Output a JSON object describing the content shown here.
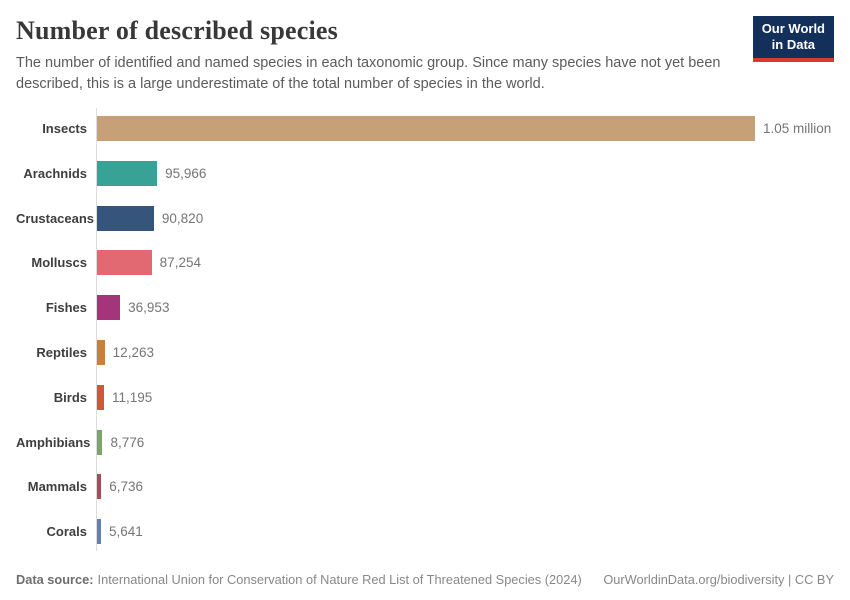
{
  "header": {
    "title": "Number of described species",
    "subtitle": "The number of identified and named species in each taxonomic group. Since many species have not yet been described, this is a large underestimate of the total number of species in the world.",
    "logo": {
      "line1": "Our World",
      "line2": "in Data",
      "bg_color": "#12305a",
      "accent_color": "#d93a2b"
    }
  },
  "chart_data": {
    "type": "bar",
    "orientation": "horizontal",
    "title": "Number of described species",
    "categories": [
      "Insects",
      "Arachnids",
      "Crustaceans",
      "Molluscs",
      "Fishes",
      "Reptiles",
      "Birds",
      "Amphibians",
      "Mammals",
      "Corals"
    ],
    "values": [
      1050000,
      95966,
      90820,
      87254,
      36953,
      12263,
      11195,
      8776,
      6736,
      5641
    ],
    "value_labels": [
      "1.05 million",
      "95,966",
      "90,820",
      "87,254",
      "36,953",
      "12,263",
      "11,195",
      "8,776",
      "6,736",
      "5,641"
    ],
    "colors": [
      "#c6a077",
      "#38a297",
      "#36557c",
      "#e26972",
      "#a5357b",
      "#c5813f",
      "#cb5a3b",
      "#7da26b",
      "#a84c59",
      "#6080b8"
    ],
    "xlim": [
      0,
      1050000
    ],
    "xlabel": "",
    "ylabel": "",
    "grid": false,
    "legend": false
  },
  "footer": {
    "source_label": "Data source:",
    "source_text": "International Union for Conservation of Nature Red List of Threatened Species (2024)",
    "credit": "OurWorldinData.org/biodiversity | CC BY"
  }
}
